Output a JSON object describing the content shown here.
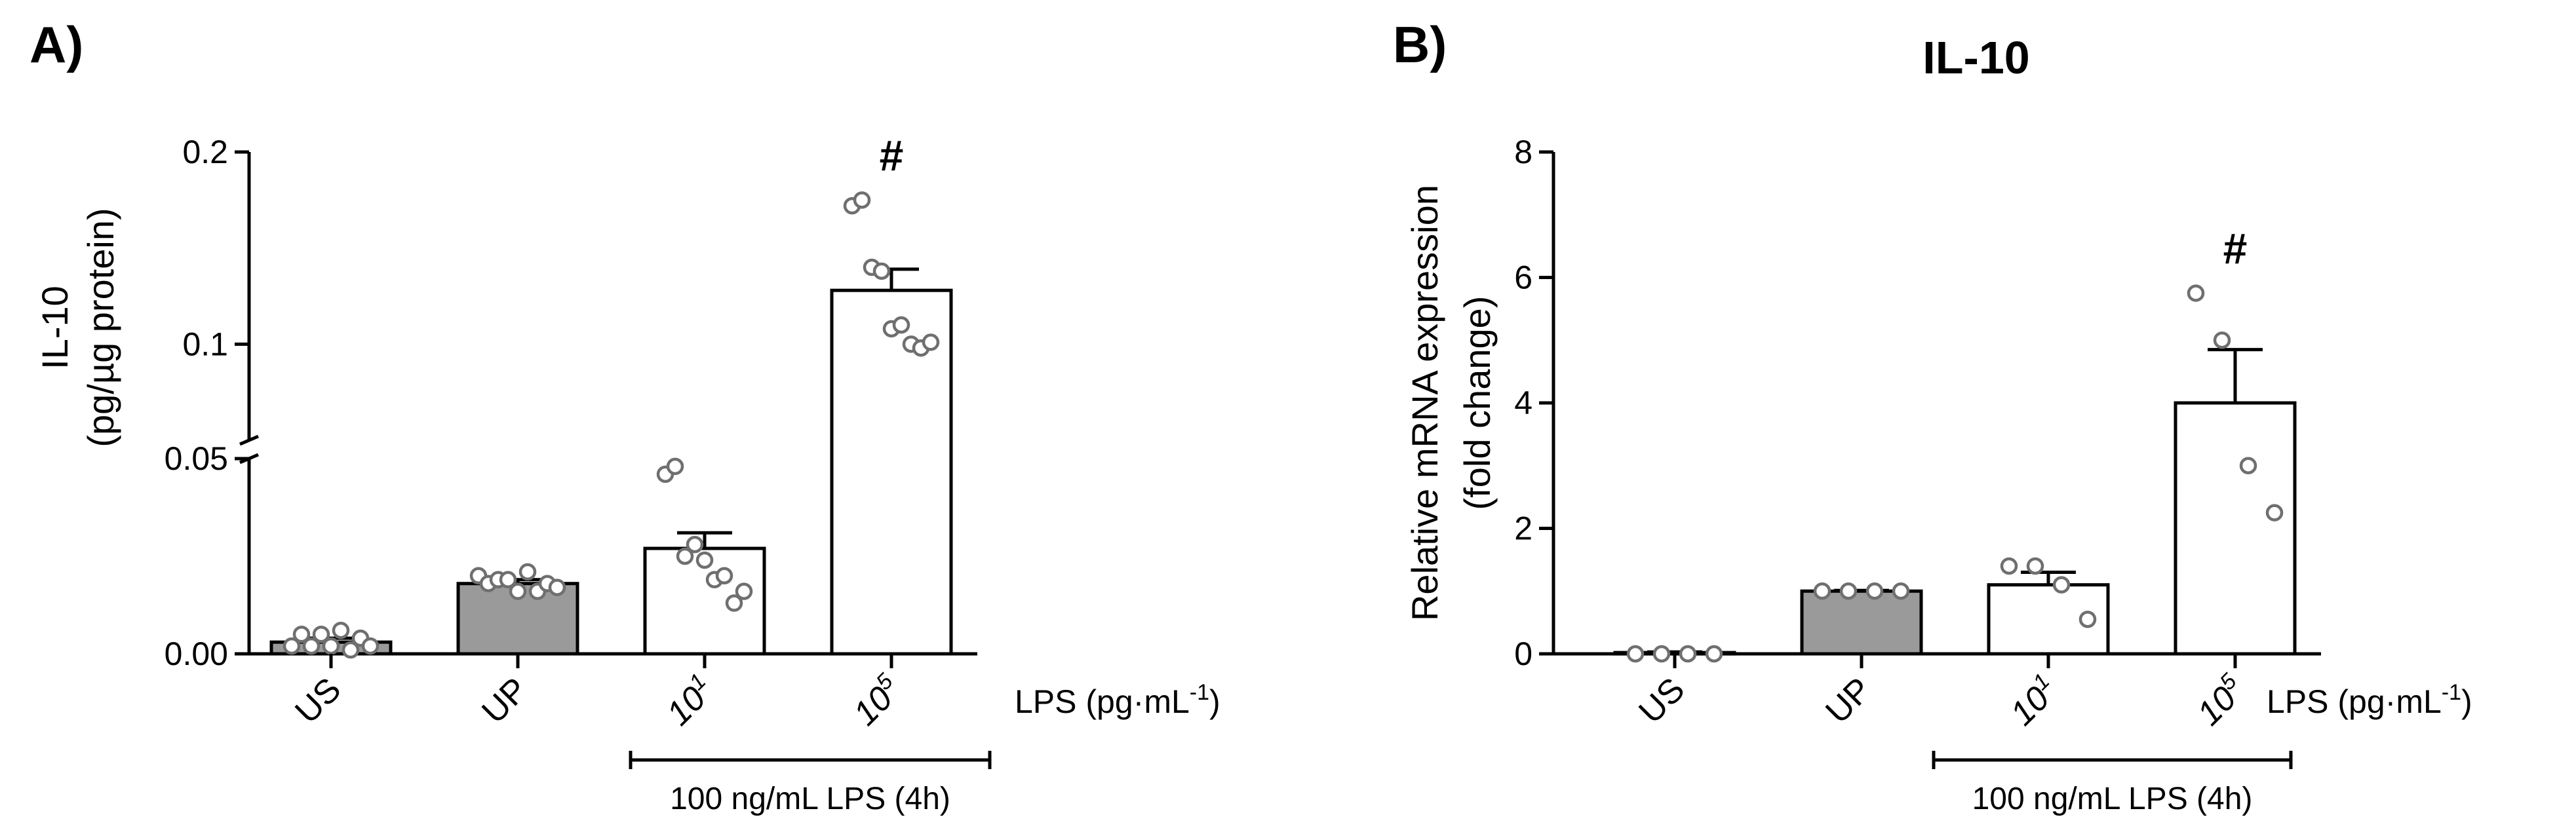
{
  "colors": {
    "control_bar": "#9a9a9a",
    "open_bar": "#ffffff",
    "ink": "#000000",
    "points_fill": "#ffffff",
    "points_stroke": "#6f6f6f"
  },
  "chart_data": [
    {
      "type": "bar",
      "panel_label": "A)",
      "title": "",
      "ylabel_line1": "IL-10",
      "ylabel_line2": "(pg/µg protein)",
      "categories": [
        "US",
        "UP",
        "10",
        "10"
      ],
      "category_superscripts": [
        "",
        "",
        "1",
        "5"
      ],
      "categories_italic": [
        false,
        false,
        true,
        true
      ],
      "xaxis_note": "LPS (pg·mL",
      "xaxis_note_sup": "-1",
      "xaxis_note_end": ")",
      "bracket_label": "100 ng/mL LPS (4h)",
      "bracket_categories": [
        2,
        3
      ],
      "y_axis_broken": true,
      "y_segments": [
        [
          0,
          0.05
        ],
        [
          0.05,
          0.2
        ]
      ],
      "yticks": [
        0.0,
        0.05,
        0.1,
        0.2
      ],
      "ytick_labels": [
        "0.00",
        "0.05",
        "0.1",
        "0.2"
      ],
      "bar_styles": [
        "filled",
        "filled",
        "open",
        "open"
      ],
      "values": [
        0.003,
        0.018,
        0.027,
        0.128
      ],
      "sem": [
        0.001,
        0.001,
        0.004,
        0.011
      ],
      "significance": [
        "",
        "",
        "",
        "#"
      ],
      "points": [
        [
          0.002,
          0.005,
          0.002,
          0.005,
          0.002,
          0.006,
          0.001,
          0.004,
          0.002
        ],
        [
          0.02,
          0.018,
          0.019,
          0.019,
          0.016,
          0.021,
          0.016,
          0.018,
          0.017
        ],
        [
          0.046,
          0.048,
          0.025,
          0.028,
          0.024,
          0.019,
          0.02,
          0.013,
          0.016
        ],
        [
          0.172,
          0.175,
          0.14,
          0.138,
          0.108,
          0.11,
          0.1,
          0.098,
          0.101
        ]
      ]
    },
    {
      "type": "bar",
      "panel_label": "B)",
      "title": "IL-10",
      "ylabel_line1": "Relative mRNA expression",
      "ylabel_line2": "(fold change)",
      "categories": [
        "US",
        "UP",
        "10",
        "10"
      ],
      "category_superscripts": [
        "",
        "",
        "1",
        "5"
      ],
      "categories_italic": [
        false,
        false,
        true,
        true
      ],
      "xaxis_note": "LPS (pg·mL",
      "xaxis_note_sup": "-1",
      "xaxis_note_end": ")",
      "bracket_label": "100 ng/mL LPS (4h)",
      "bracket_categories": [
        2,
        3
      ],
      "y_axis_broken": false,
      "ylim": [
        0,
        8
      ],
      "yticks": [
        0,
        2,
        4,
        6,
        8
      ],
      "ytick_labels": [
        "0",
        "2",
        "4",
        "6",
        "8"
      ],
      "bar_styles": [
        "filled",
        "filled",
        "open",
        "open"
      ],
      "values": [
        0.02,
        1.0,
        1.1,
        4.0
      ],
      "sem": [
        0.01,
        0.01,
        0.2,
        0.85
      ],
      "significance": [
        "",
        "",
        "",
        "#"
      ],
      "points": [
        [
          0.0,
          0.0,
          0.0,
          0.0
        ],
        [
          1.0,
          1.0,
          1.0,
          1.0
        ],
        [
          1.4,
          1.4,
          1.1,
          0.55
        ],
        [
          5.75,
          5.0,
          3.0,
          2.25
        ]
      ]
    }
  ]
}
